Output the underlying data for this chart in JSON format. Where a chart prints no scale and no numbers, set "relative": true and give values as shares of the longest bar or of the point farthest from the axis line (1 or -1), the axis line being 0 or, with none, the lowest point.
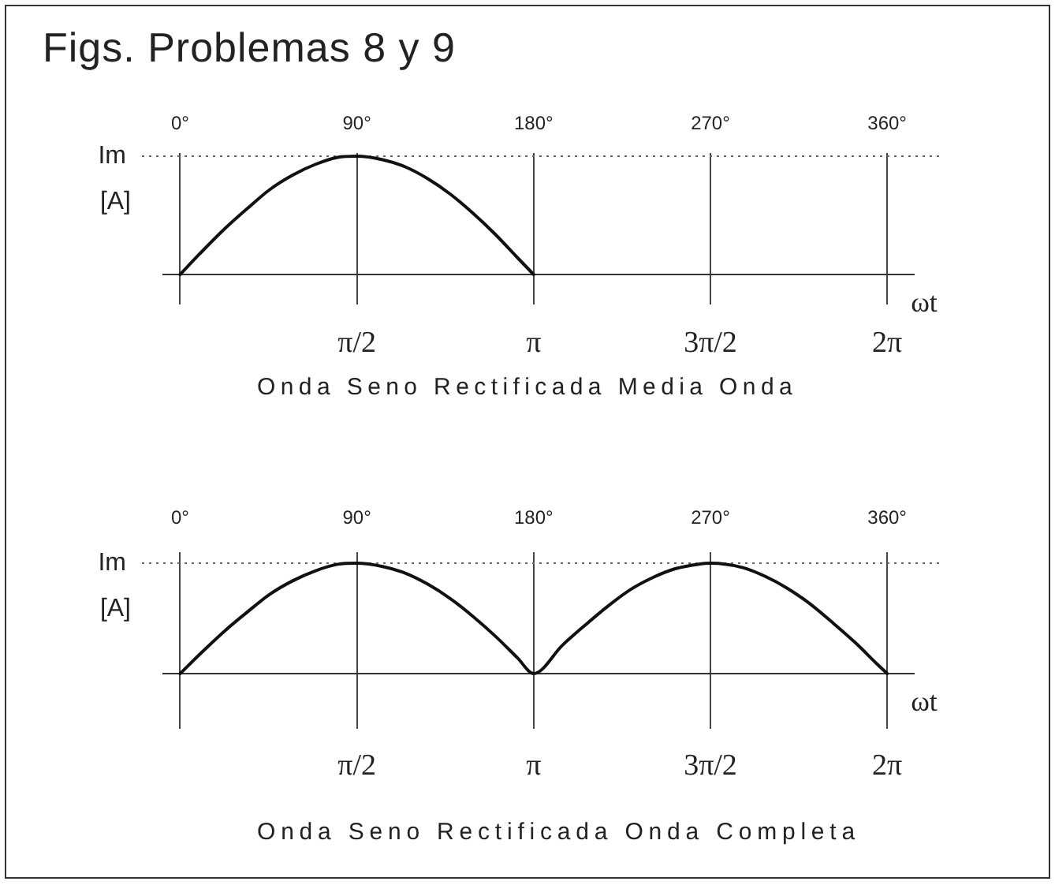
{
  "chart_data": [
    {
      "type": "line",
      "title": "Onda Seno Rectificada Media Onda",
      "xlabel": "ωt",
      "ylabel": "[A]",
      "annotations": [
        "Figs. Problemas 8 y 9"
      ],
      "relative": true,
      "x": [
        0,
        0.2,
        0.4,
        0.6,
        0.8,
        1.0,
        1.2,
        1.4,
        1.5708,
        1.8,
        2.0,
        2.2,
        2.4,
        2.6,
        2.8,
        3.0,
        3.1416
      ],
      "values": [
        0,
        0.2,
        0.39,
        0.56,
        0.72,
        0.84,
        0.93,
        0.99,
        1,
        0.97,
        0.91,
        0.81,
        0.68,
        0.52,
        0.34,
        0.14,
        0
      ],
      "color": "#111111",
      "marker": "none",
      "line_style": "solid",
      "grid": "x",
      "xlim": [
        -0.157,
        6.527
      ],
      "xticks": [
        {
          "value": 0,
          "label": null
        },
        {
          "value": 1.5708,
          "label": "π/2"
        },
        {
          "value": 3.1416,
          "label": "π"
        },
        {
          "value": 4.7124,
          "label": "3π/2"
        },
        {
          "value": 6.2832,
          "label": "2π"
        }
      ],
      "x2lim": [
        -9,
        374
      ],
      "x2ticks": [
        {
          "value": 0,
          "label": "0°"
        },
        {
          "value": 90,
          "label": "90°"
        },
        {
          "value": 180,
          "label": "180°"
        },
        {
          "value": 270,
          "label": "270°"
        },
        {
          "value": 360,
          "label": "360°"
        }
      ],
      "ref_lines": [
        {
          "axis": "y",
          "value": 1,
          "label": "Im",
          "line_style": "dotted"
        }
      ]
    },
    {
      "type": "line",
      "title": "Onda Seno Rectificada Onda Completa",
      "xlabel": "ωt",
      "ylabel": "[A]",
      "relative": true,
      "x": [
        0,
        0.2,
        0.4,
        0.6,
        0.8,
        1.0,
        1.2,
        1.4,
        1.5708,
        1.8,
        2.0,
        2.2,
        2.4,
        2.6,
        2.8,
        3.0,
        3.1416,
        3.4,
        3.6,
        3.8,
        4.0,
        4.2,
        4.4,
        4.6,
        4.7124,
        5.0,
        5.2,
        5.4,
        5.6,
        5.8,
        6.0,
        6.2,
        6.2832
      ],
      "values": [
        0,
        0.2,
        0.39,
        0.56,
        0.72,
        0.84,
        0.93,
        0.99,
        1,
        0.97,
        0.91,
        0.81,
        0.68,
        0.52,
        0.34,
        0.14,
        0,
        0.26,
        0.44,
        0.61,
        0.76,
        0.87,
        0.95,
        0.99,
        1,
        0.96,
        0.88,
        0.77,
        0.63,
        0.46,
        0.28,
        0.08,
        0
      ],
      "color": "#111111",
      "marker": "none",
      "line_style": "solid",
      "grid": "x",
      "xlim": [
        -0.157,
        6.527
      ],
      "xticks": [
        {
          "value": 0,
          "label": null
        },
        {
          "value": 1.5708,
          "label": "π/2"
        },
        {
          "value": 3.1416,
          "label": "π"
        },
        {
          "value": 4.7124,
          "label": "3π/2"
        },
        {
          "value": 6.2832,
          "label": "2π"
        }
      ],
      "x2lim": [
        -9,
        374
      ],
      "x2ticks": [
        {
          "value": 0,
          "label": "0°"
        },
        {
          "value": 90,
          "label": "90°"
        },
        {
          "value": 180,
          "label": "180°"
        },
        {
          "value": 270,
          "label": "270°"
        },
        {
          "value": 360,
          "label": "360°"
        }
      ],
      "ref_lines": [
        {
          "axis": "y",
          "value": 1,
          "label": "Im",
          "line_style": "dotted"
        }
      ]
    }
  ]
}
